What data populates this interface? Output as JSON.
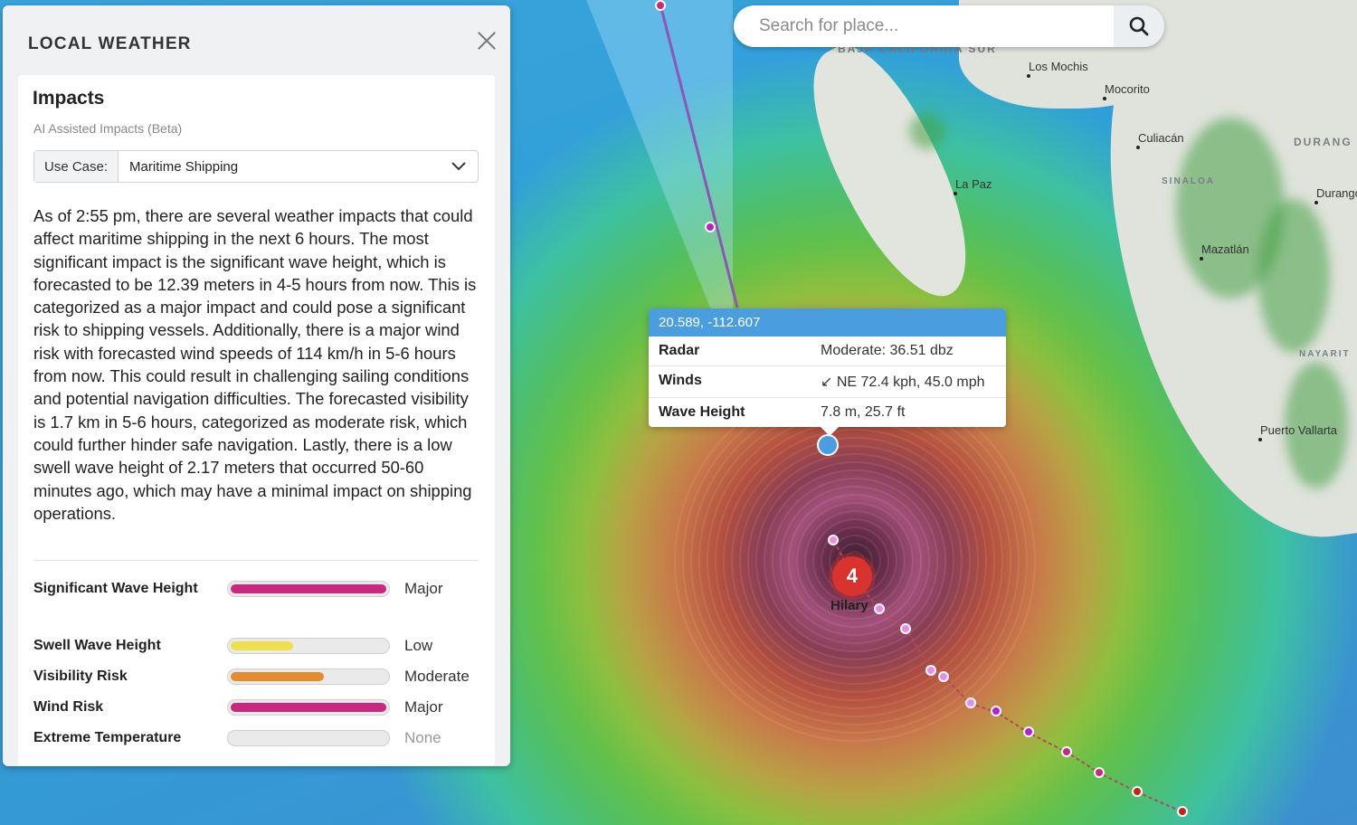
{
  "panel": {
    "title": "LOCAL WEATHER",
    "card_title": "Impacts",
    "subtitle": "AI Assisted Impacts (Beta)",
    "use_case_label": "Use Case:",
    "use_case_value": "Maritime Shipping",
    "summary": "As of 2:55 pm, there are several weather impacts that could affect maritime shipping in the next 6 hours. The most significant impact is the significant wave height, which is forecasted to be 12.39 meters in 4-5 hours from now. This is categorized as a major impact and could pose a significant risk to shipping vessels. Additionally, there is a major wind risk with forecasted wind speeds of 114 km/h in 5-6 hours from now. This could result in challenging sailing conditions and potential navigation difficulties. The forecasted visibility is 1.7 km in 5-6 hours, categorized as moderate risk, which could further hinder safe navigation. Lastly, there is a low swell wave height of 2.17 meters that occurred 50-60 minutes ago, which may have a minimal impact on shipping operations.",
    "metrics": [
      {
        "label": "Significant Wave Height",
        "level": "Major",
        "fill": 1.0,
        "color": "#c8287f"
      },
      {
        "label": "Swell Wave Height",
        "level": "Low",
        "fill": 0.4,
        "color": "#ede04a"
      },
      {
        "label": "Visibility Risk",
        "level": "Moderate",
        "fill": 0.6,
        "color": "#e58c2e"
      },
      {
        "label": "Wind Risk",
        "level": "Major",
        "fill": 1.0,
        "color": "#c8287f"
      },
      {
        "label": "Extreme Temperature",
        "level": "None",
        "fill": 0,
        "color": "#e6e6e6"
      }
    ]
  },
  "search": {
    "placeholder": "Search for place..."
  },
  "tooltip": {
    "coords": "20.589, -112.607",
    "rows": [
      {
        "key": "Radar",
        "value": "Moderate: 36.51 dbz"
      },
      {
        "key": "Winds",
        "value": "↙ NE 72.4 kph, 45.0 mph"
      },
      {
        "key": "Wave Height",
        "value": "7.8 m, 25.7 ft"
      }
    ]
  },
  "map": {
    "places": [
      "Los Mochis",
      "Mocorito",
      "Culiacán",
      "La Paz",
      "Mazatlán",
      "Durango",
      "Puerto Vallarta"
    ],
    "regions": [
      "BAJA CALIFORNIA SUR",
      "DURANG",
      "SINALOA",
      "NAYARIT"
    ],
    "storm": {
      "name": "Hilary",
      "category": "4"
    }
  }
}
